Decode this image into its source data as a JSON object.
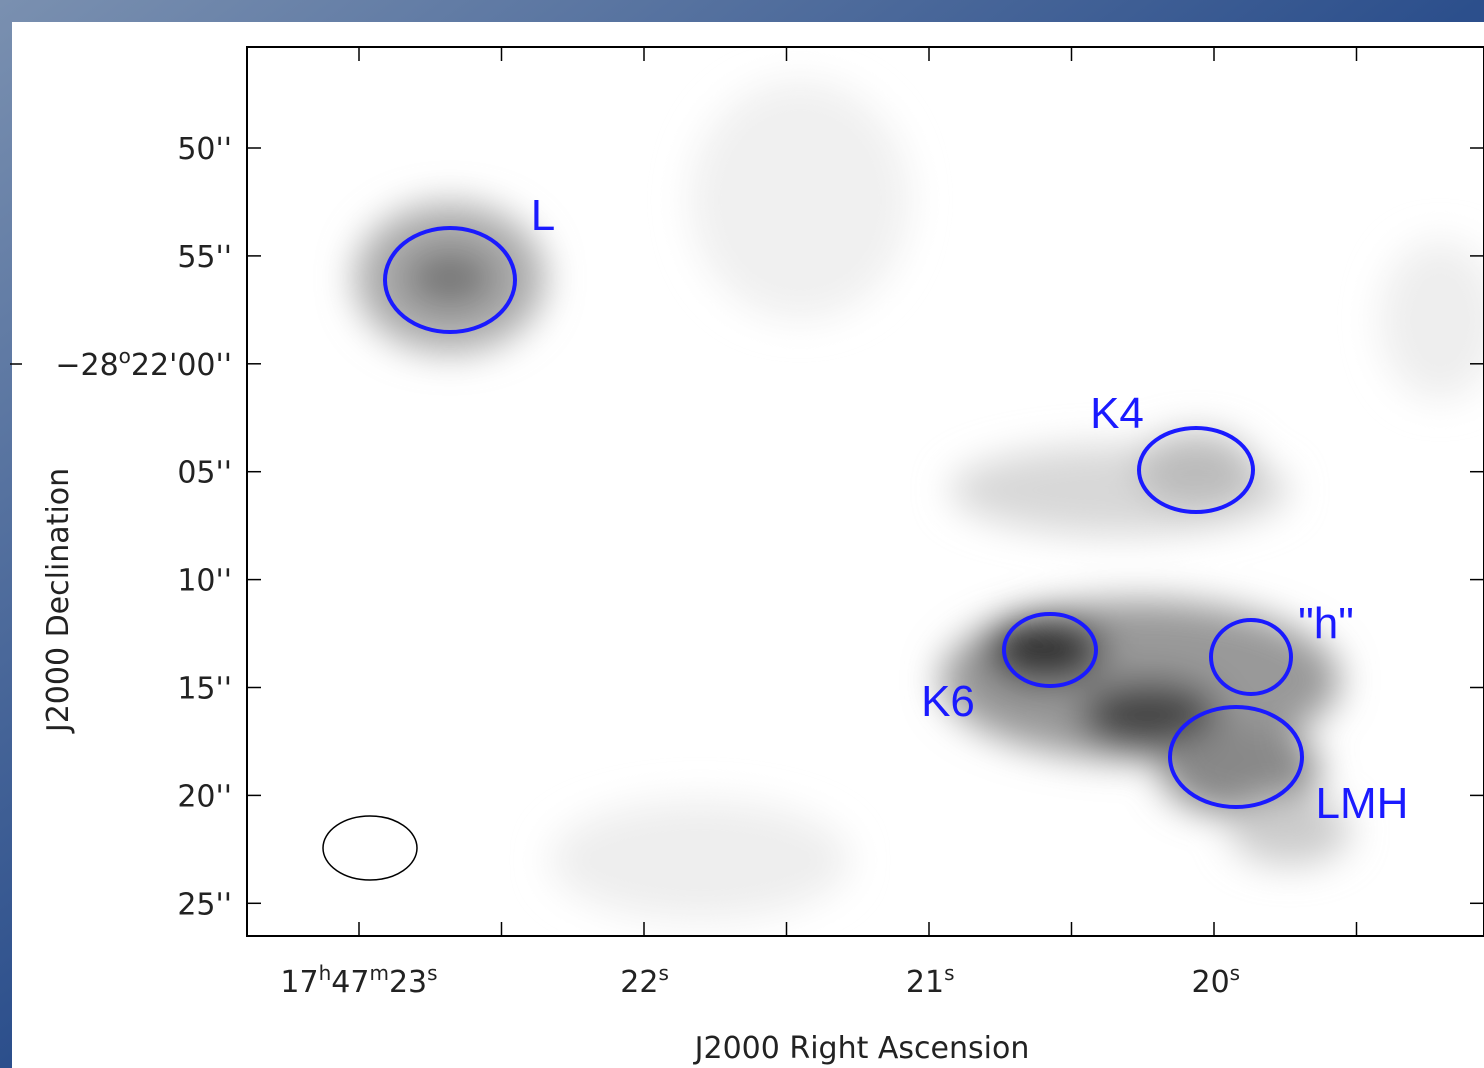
{
  "axes": {
    "y_title": "J2000 Declination",
    "x_title": "J2000 Right Ascension",
    "y_ticks": [
      {
        "parts": [
          "50''"
        ]
      },
      {
        "parts": [
          "55''"
        ]
      },
      {
        "parts": [
          "−28",
          "o",
          "22'00''"
        ]
      },
      {
        "parts": [
          "05''"
        ]
      },
      {
        "parts": [
          "10''"
        ]
      },
      {
        "parts": [
          "15''"
        ]
      },
      {
        "parts": [
          "20''"
        ]
      },
      {
        "parts": [
          "25''"
        ]
      }
    ],
    "x_ticks": [
      {
        "parts": [
          "17",
          "h",
          "47",
          "m",
          "23",
          "s"
        ]
      },
      {
        "parts": [
          "22",
          "s"
        ]
      },
      {
        "parts": [
          "21",
          "s"
        ]
      },
      {
        "parts": [
          "20",
          "s"
        ]
      }
    ]
  },
  "sources": [
    {
      "label": "L"
    },
    {
      "label": "K4"
    },
    {
      "label": "\"h\""
    },
    {
      "label": "K6"
    },
    {
      "label": "LMH"
    }
  ]
}
